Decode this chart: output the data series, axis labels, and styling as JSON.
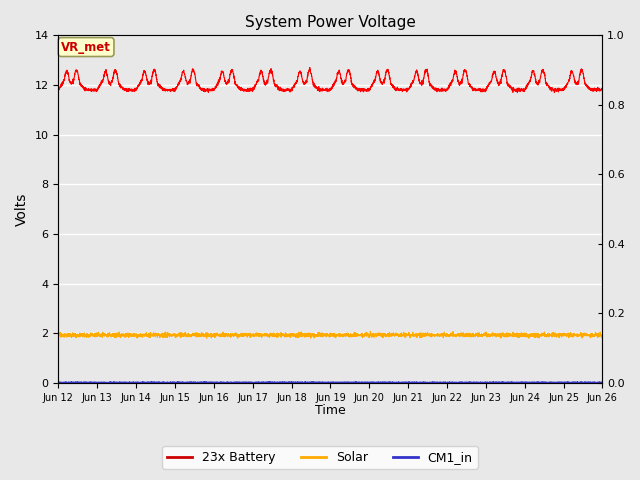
{
  "title": "System Power Voltage",
  "xlabel": "Time",
  "ylabel": "Volts",
  "background_color": "#e8e8e8",
  "ylim_left": [
    0,
    14
  ],
  "ylim_right": [
    0.0,
    1.0
  ],
  "yticks_left": [
    0,
    2,
    4,
    6,
    8,
    10,
    12,
    14
  ],
  "yticks_right": [
    0.0,
    0.2,
    0.4,
    0.6,
    0.8,
    1.0
  ],
  "n_days": 14,
  "annotation_text": "VR_met",
  "annotation_color": "#cc0000",
  "annotation_bg": "#ffffcc",
  "annotation_border": "#999955",
  "series": [
    {
      "name": "23x Battery",
      "color": "#ff0000"
    },
    {
      "name": "Solar",
      "color": "#ffaa00"
    },
    {
      "name": "CM1_in",
      "color": "#3333cc"
    }
  ],
  "legend_dash_colors": [
    "#cc0000",
    "#ffaa00",
    "#3333cc"
  ]
}
